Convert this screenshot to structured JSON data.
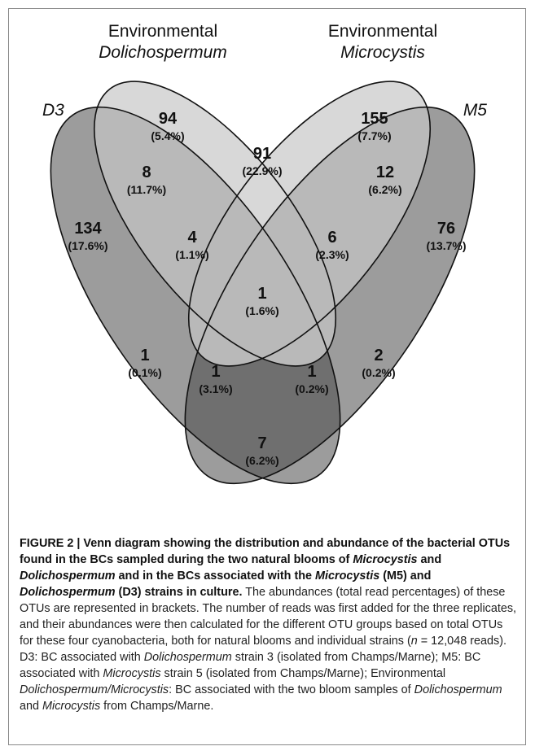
{
  "sets": {
    "d3": {
      "label": "D3",
      "color": "#9c9c9c"
    },
    "env_dol": {
      "label_line1": "Environmental",
      "label_line2": "Dolichospermum",
      "color": "#d8d8d8"
    },
    "env_mic": {
      "label_line1": "Environmental",
      "label_line2": "Microcystis",
      "color": "#d8d8d8"
    },
    "m5": {
      "label": "M5",
      "color": "#9c9c9c"
    }
  },
  "regions": [
    {
      "id": "dol_only",
      "count": "94",
      "percent": "(5.4%)"
    },
    {
      "id": "mic_only",
      "count": "155",
      "percent": "(7.7%)"
    },
    {
      "id": "d3_only",
      "count": "134",
      "percent": "(17.6%)"
    },
    {
      "id": "m5_only",
      "count": "76",
      "percent": "(13.7%)"
    },
    {
      "id": "d3_dol",
      "count": "8",
      "percent": "(11.7%)"
    },
    {
      "id": "dol_mic",
      "count": "91",
      "percent": "(22.9%)"
    },
    {
      "id": "mic_m5",
      "count": "12",
      "percent": "(6.2%)"
    },
    {
      "id": "d3_dol_mic",
      "count": "4",
      "percent": "(1.1%)"
    },
    {
      "id": "dol_mic_m5",
      "count": "6",
      "percent": "(2.3%)"
    },
    {
      "id": "all_four",
      "count": "1",
      "percent": "(1.6%)"
    },
    {
      "id": "d3_mic",
      "count": "1",
      "percent": "(0.1%)"
    },
    {
      "id": "dol_m5",
      "count": "2",
      "percent": "(0.2%)"
    },
    {
      "id": "d3_mic_m5",
      "count": "1",
      "percent": "(3.1%)"
    },
    {
      "id": "d3_dol_m5",
      "count": "1",
      "percent": "(0.2%)"
    },
    {
      "id": "d3_m5",
      "count": "7",
      "percent": "(6.2%)"
    }
  ],
  "caption": {
    "t1": "FIGURE 2 | Venn diagram showing the distribution and abundance of the bacterial OTUs found in the BCs sampled during the two natural blooms of ",
    "t_mic": "Microcystis",
    "t2": " and ",
    "t_dol": "Dolichospermum",
    "t3": " and in the BCs associated with the ",
    "t_mic2": "Microcystis",
    "t4": " (M5) and ",
    "t_dol2": "Dolichospermum",
    "t5": " (D3) strains in culture.",
    "b1": " The abundances (total read percentages) of these OTUs are represented in brackets. The number of reads was first added for the three replicates, and their abundances were then calculated for the different OTU groups based on total OTUs for these four cyanobacteria, both for natural blooms and individual strains (",
    "b_n": "n",
    "b2": " = 12,048 reads). D3: BC associated with ",
    "b_dol": "Dolichospermum",
    "b3": " strain 3 (isolated from Champs/Marne); M5: BC associated with ",
    "b_mic": "Microcystis",
    "b4": " strain 5 (isolated from Champs/Marne); Environmental ",
    "b_dolmic": "Dolichospermum/Microcystis",
    "b5": ": BC associated with the two bloom samples of ",
    "b_dol2": "Dolichospermum",
    "b6": " and ",
    "b_mic2": "Microcystis",
    "b7": " from Champs/Marne."
  }
}
